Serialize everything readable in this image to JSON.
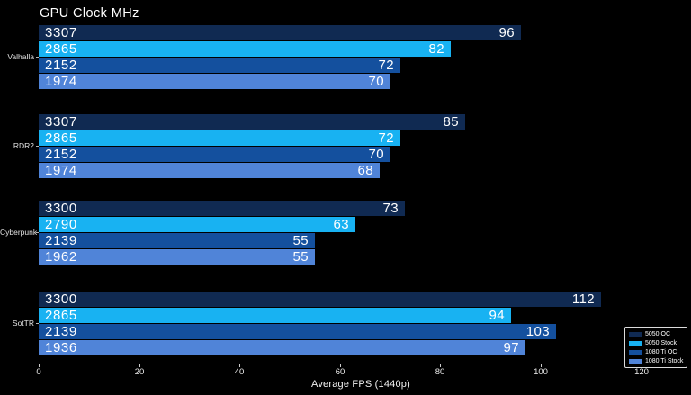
{
  "chart_data": {
    "type": "bar",
    "orientation": "horizontal",
    "title": "GPU Clock MHz",
    "xlabel": "Average FPS (1440p)",
    "xlim": [
      0,
      129
    ],
    "xticks": [
      0,
      20,
      40,
      60,
      80,
      100,
      120
    ],
    "grid": false,
    "background_color": "#000000",
    "text_color": "#ffffff",
    "legend_position": "lower-right",
    "categories": [
      "Valhalla",
      "RDR2",
      "Cyberpunk",
      "SotTR"
    ],
    "series": [
      {
        "name": "5050 OC",
        "color": "#102a52",
        "fps": [
          96,
          85,
          73,
          112
        ],
        "gpu_clock_mhz": [
          3307,
          3307,
          3300,
          3300
        ]
      },
      {
        "name": "5050 Stock",
        "color": "#18b2f2",
        "fps": [
          82,
          72,
          63,
          94
        ],
        "gpu_clock_mhz": [
          2865,
          2865,
          2790,
          2865
        ]
      },
      {
        "name": "1080 Ti OC",
        "color": "#14509e",
        "fps": [
          72,
          70,
          55,
          103
        ],
        "gpu_clock_mhz": [
          2152,
          2152,
          2139,
          2139
        ]
      },
      {
        "name": "1080 Ti Stock",
        "color": "#5084d8",
        "fps": [
          70,
          68,
          55,
          97
        ],
        "gpu_clock_mhz": [
          1974,
          1974,
          1962,
          1936
        ]
      }
    ]
  }
}
